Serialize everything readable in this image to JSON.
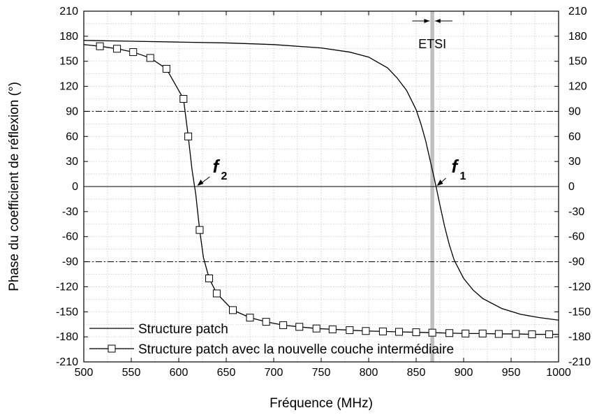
{
  "chart_data": {
    "type": "line",
    "xlabel": "Fréquence (MHz)",
    "ylabel": "Phase du coefficient de réflexion (°)",
    "xlim": [
      500,
      1000
    ],
    "ylim": [
      -210,
      210
    ],
    "x_ticks": [
      500,
      550,
      600,
      650,
      700,
      750,
      800,
      850,
      900,
      950,
      1000
    ],
    "y_ticks": [
      -210,
      -180,
      -150,
      -120,
      -90,
      -60,
      -30,
      0,
      30,
      60,
      90,
      120,
      150,
      180,
      210
    ],
    "right_axis_ticks": [
      -210,
      -180,
      -150,
      -120,
      -90,
      -60,
      -30,
      0,
      30,
      60,
      90,
      120,
      150,
      180,
      210
    ],
    "grid": "dotted",
    "legend_position": "bottom-left",
    "reference_lines": [
      {
        "y": 90,
        "style": "dash-dot"
      },
      {
        "y": 0,
        "style": "solid"
      },
      {
        "y": -90,
        "style": "dash-dot"
      }
    ],
    "band": {
      "label": "ETSI",
      "x_start": 865,
      "x_end": 869,
      "color": "#bfbfbf"
    },
    "annotations": [
      {
        "label": "f",
        "subscript": "1",
        "x": 871,
        "y": 0
      },
      {
        "label": "f",
        "subscript": "2",
        "x": 618,
        "y": 0
      }
    ],
    "series": [
      {
        "name": "Structure patch",
        "marker": "none",
        "color": "#000000",
        "x": [
          500,
          550,
          600,
          650,
          700,
          750,
          780,
          800,
          820,
          830,
          840,
          850,
          855,
          860,
          865,
          870,
          875,
          880,
          885,
          890,
          900,
          910,
          920,
          940,
          960,
          980,
          1000
        ],
        "y": [
          175,
          174,
          173,
          172,
          170,
          166,
          161,
          155,
          142,
          130,
          115,
          92,
          75,
          55,
          30,
          5,
          -22,
          -48,
          -70,
          -88,
          -110,
          -124,
          -134,
          -146,
          -153,
          -157,
          -160
        ]
      },
      {
        "name": "Structure patch avec la nouvelle couche intermédiaire",
        "marker": "open-square",
        "color": "#000000",
        "x": [
          500,
          517,
          535,
          552,
          570,
          587,
          605,
          610,
          614,
          618,
          622,
          626,
          632,
          640,
          657,
          675,
          692,
          710,
          727,
          745,
          762,
          780,
          797,
          815,
          832,
          850,
          867,
          885,
          902,
          920,
          937,
          955,
          972,
          990,
          1000
        ],
        "y": [
          170,
          168,
          165,
          161,
          154,
          141,
          105,
          60,
          20,
          -10,
          -52,
          -85,
          -110,
          -128,
          -148,
          -157,
          -162,
          -166,
          -168,
          -170,
          -171,
          -172,
          -173,
          -173.5,
          -174,
          -174.5,
          -175,
          -175.5,
          -176,
          -176,
          -176.5,
          -176.5,
          -177,
          -177,
          -177
        ]
      }
    ]
  }
}
